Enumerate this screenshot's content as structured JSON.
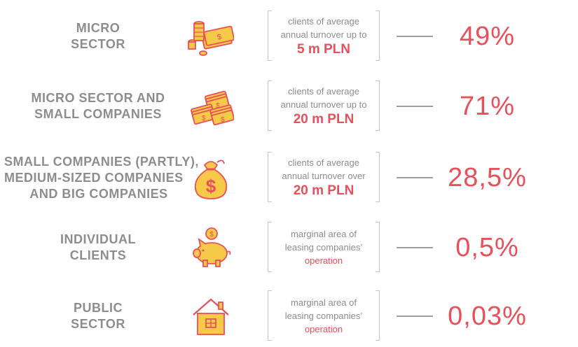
{
  "colors": {
    "accent": "#e8505b",
    "label": "#8d8d8d",
    "icon_fill": "#f7c948",
    "icon_stroke": "#e8505b"
  },
  "rows": [
    {
      "label_lines": [
        "MICRO",
        "SECTOR"
      ],
      "icon": "coins-and-cash-icon",
      "desc_lines": [
        "clients of average",
        "annual turnover up to"
      ],
      "emphasis": "5 m PLN",
      "percentage": "49%"
    },
    {
      "label_lines": [
        "MICRO SECTOR AND",
        "SMALL COMPANIES"
      ],
      "icon": "cash-stacks-icon",
      "desc_lines": [
        "clients of average",
        "annual turnover up to"
      ],
      "emphasis": "20 m PLN",
      "percentage": "71%"
    },
    {
      "label_lines": [
        "SMALL COMPANIES (PARTLY),",
        "MEDIUM-SIZED COMPANIES",
        "AND BIG COMPANIES"
      ],
      "icon": "money-bag-icon",
      "desc_lines": [
        "clients of average",
        "annual turnover over"
      ],
      "emphasis": "20 m PLN",
      "percentage": "28,5%"
    },
    {
      "label_lines": [
        "INDIVIDUAL",
        "CLIENTS"
      ],
      "icon": "piggy-bank-icon",
      "desc_lines": [
        "marginal area of",
        "leasing companies’"
      ],
      "emphasis": "operation",
      "percentage": "0,5%"
    },
    {
      "label_lines": [
        "PUBLIC",
        "SECTOR"
      ],
      "icon": "house-icon",
      "desc_lines": [
        "marginal area of",
        "leasing companies’"
      ],
      "emphasis": "operation",
      "percentage": "0,03%"
    }
  ]
}
